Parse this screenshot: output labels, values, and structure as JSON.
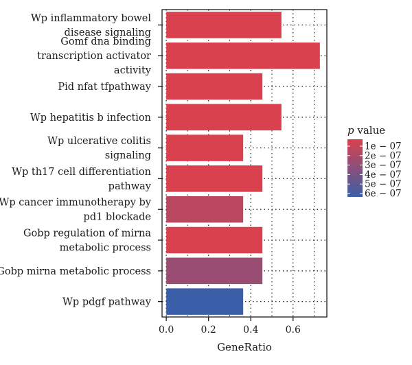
{
  "chart_data": {
    "type": "bar",
    "orientation": "horizontal",
    "categories": [
      [
        "Wp inflammatory bowel",
        "disease signaling"
      ],
      [
        "Gomf dna binding",
        "transcription activator",
        "activity"
      ],
      [
        "Pid nfat tfpathway"
      ],
      [
        "Wp hepatitis b infection"
      ],
      [
        "Wp ulcerative colitis",
        "signaling"
      ],
      [
        "Wp th17 cell differentiation",
        "pathway"
      ],
      [
        "Wp cancer immunotherapy by",
        "pd1 blockade"
      ],
      [
        "Gobp regulation of mirna",
        "metabolic process"
      ],
      [
        "Gobp mirna metabolic process"
      ],
      [
        "Wp pdgf pathway"
      ]
    ],
    "values": [
      0.545,
      0.727,
      0.455,
      0.545,
      0.364,
      0.455,
      0.364,
      0.455,
      0.455,
      0.364
    ],
    "p_values": [
      1e-07,
      1e-07,
      1e-07,
      1e-07,
      1e-07,
      1e-07,
      2e-07,
      1e-07,
      3e-07,
      6e-07
    ],
    "xlabel": "GeneRatio",
    "ylabel": "",
    "xlim": [
      -0.02,
      0.76
    ],
    "xticks": [
      0.0,
      0.2,
      0.4,
      0.6
    ],
    "xtick_labels": [
      "0.0",
      "0.2",
      "0.4",
      "0.6"
    ],
    "grid": "dotted",
    "legend": {
      "title_italic": "p",
      "title_rest": " value",
      "labels": [
        "1e − 07",
        "2e − 07",
        "3e − 07",
        "4e − 07",
        "5e − 07",
        "6e − 07"
      ],
      "values": [
        1e-07,
        2e-07,
        3e-07,
        4e-07,
        5e-07,
        6e-07
      ],
      "color_low": "#d9414e",
      "color_high": "#3a5fa8",
      "placement": "right"
    }
  }
}
